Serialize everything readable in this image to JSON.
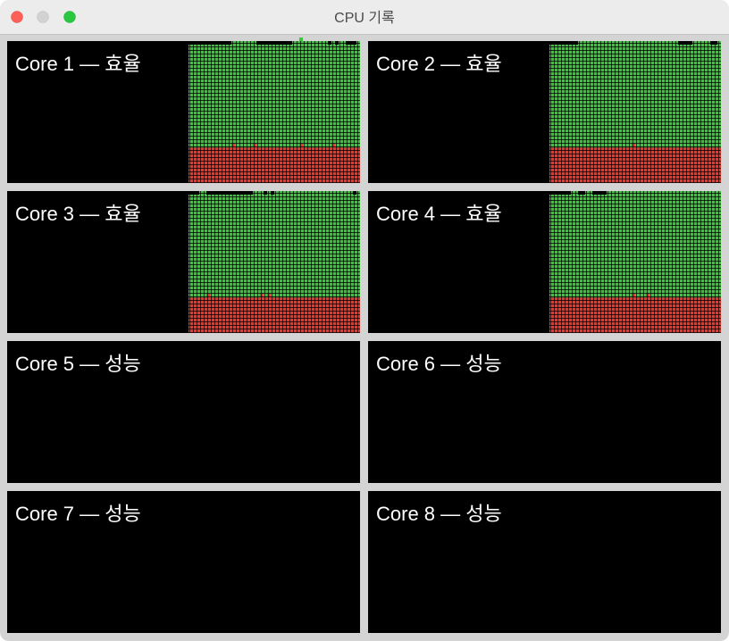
{
  "window": {
    "title": "CPU 기록"
  },
  "colors": {
    "system": "#e8382e",
    "user": "#3cc43c"
  },
  "cores": [
    {
      "label": "Core 1 — 효율",
      "system": [
        25,
        25,
        25,
        25,
        25,
        25,
        25,
        25,
        25,
        25,
        25,
        25,
        27.5,
        25,
        25,
        25,
        25,
        25,
        27.5,
        25,
        25,
        25,
        25,
        25,
        25,
        25,
        25,
        25,
        25,
        25,
        25,
        27.5,
        25,
        25,
        25,
        25,
        25,
        25,
        25,
        25,
        27.5,
        25,
        25,
        25,
        25,
        25,
        25,
        25
      ],
      "user": [
        72.5,
        72.5,
        72.5,
        72.5,
        72.5,
        72.5,
        72.5,
        72.5,
        72.5,
        72.5,
        72.5,
        72.5,
        72.5,
        75,
        75,
        75,
        75,
        75,
        72.5,
        72.5,
        72.5,
        72.5,
        72.5,
        72.5,
        72.5,
        72.5,
        72.5,
        72.5,
        72.5,
        75,
        75,
        75,
        75,
        75,
        75,
        75,
        75,
        75,
        75,
        72.5,
        72.5,
        72.5,
        75,
        75,
        72.5,
        72.5,
        72.5,
        75
      ]
    },
    {
      "label": "Core 2 — 효율",
      "system": [
        25,
        25,
        25,
        25,
        25,
        25,
        25,
        25,
        25,
        25,
        25,
        25,
        25,
        25,
        25,
        25,
        25,
        25,
        25,
        25,
        25,
        25,
        25,
        27.5,
        25,
        25,
        25,
        25,
        25,
        25,
        25,
        25,
        25,
        25,
        25,
        25,
        25,
        25,
        25,
        25,
        25,
        25,
        25,
        25,
        25,
        25,
        25,
        25
      ],
      "user": [
        72.5,
        72.5,
        72.5,
        72.5,
        72.5,
        72.5,
        72.5,
        72.5,
        75,
        75,
        75,
        75,
        75,
        75,
        75,
        75,
        75,
        75,
        75,
        75,
        75,
        75,
        75,
        72.5,
        75,
        75,
        75,
        75,
        75,
        75,
        75,
        75,
        75,
        75,
        75,
        75,
        72.5,
        72.5,
        72.5,
        72.5,
        75,
        75,
        75,
        75,
        75,
        72.5,
        72.5,
        75
      ]
    },
    {
      "label": "Core 3 — 효율",
      "system": [
        25,
        25,
        25,
        25,
        25,
        27.5,
        25,
        25,
        25,
        25,
        25,
        25,
        25,
        25,
        25,
        25,
        25,
        25,
        25,
        25,
        27.5,
        25,
        27.5,
        25,
        25,
        25,
        25,
        25,
        25,
        25,
        25,
        25,
        25,
        25,
        25,
        25,
        25,
        25,
        25,
        25,
        25,
        25,
        25,
        25,
        25,
        25,
        25,
        25
      ],
      "user": [
        72.5,
        72.5,
        72.5,
        75,
        75,
        70,
        72.5,
        72.5,
        72.5,
        72.5,
        72.5,
        72.5,
        72.5,
        72.5,
        72.5,
        72.5,
        72.5,
        72.5,
        75,
        75,
        72.5,
        72.5,
        72.5,
        72.5,
        75,
        75,
        75,
        75,
        75,
        75,
        75,
        75,
        75,
        75,
        75,
        75,
        75,
        75,
        75,
        75,
        75,
        75,
        75,
        75,
        75,
        75,
        72.5,
        75
      ]
    },
    {
      "label": "Core 4 — 효율",
      "system": [
        25,
        25,
        25,
        25,
        25,
        25,
        25,
        25,
        25,
        25,
        25,
        25,
        25,
        25,
        25,
        25,
        25,
        25,
        25,
        25,
        25,
        25,
        25,
        27.5,
        25,
        25,
        25,
        27.5,
        25,
        25,
        25,
        25,
        25,
        25,
        25,
        25,
        25,
        25,
        25,
        25,
        25,
        25,
        25,
        25,
        25,
        25,
        25,
        25
      ],
      "user": [
        72.5,
        72.5,
        72.5,
        72.5,
        72.5,
        72.5,
        75,
        75,
        72.5,
        72.5,
        75,
        75,
        72.5,
        72.5,
        72.5,
        72.5,
        75,
        75,
        75,
        75,
        75,
        75,
        75,
        72.5,
        75,
        75,
        75,
        72.5,
        75,
        75,
        75,
        75,
        75,
        75,
        75,
        75,
        75,
        75,
        75,
        75,
        75,
        75,
        75,
        75,
        75,
        75,
        75,
        75
      ]
    },
    {
      "label": "Core 5 — 성능"
    },
    {
      "label": "Core 6 — 성능"
    },
    {
      "label": "Core 7 — 성능"
    },
    {
      "label": "Core 8 — 성능"
    }
  ]
}
